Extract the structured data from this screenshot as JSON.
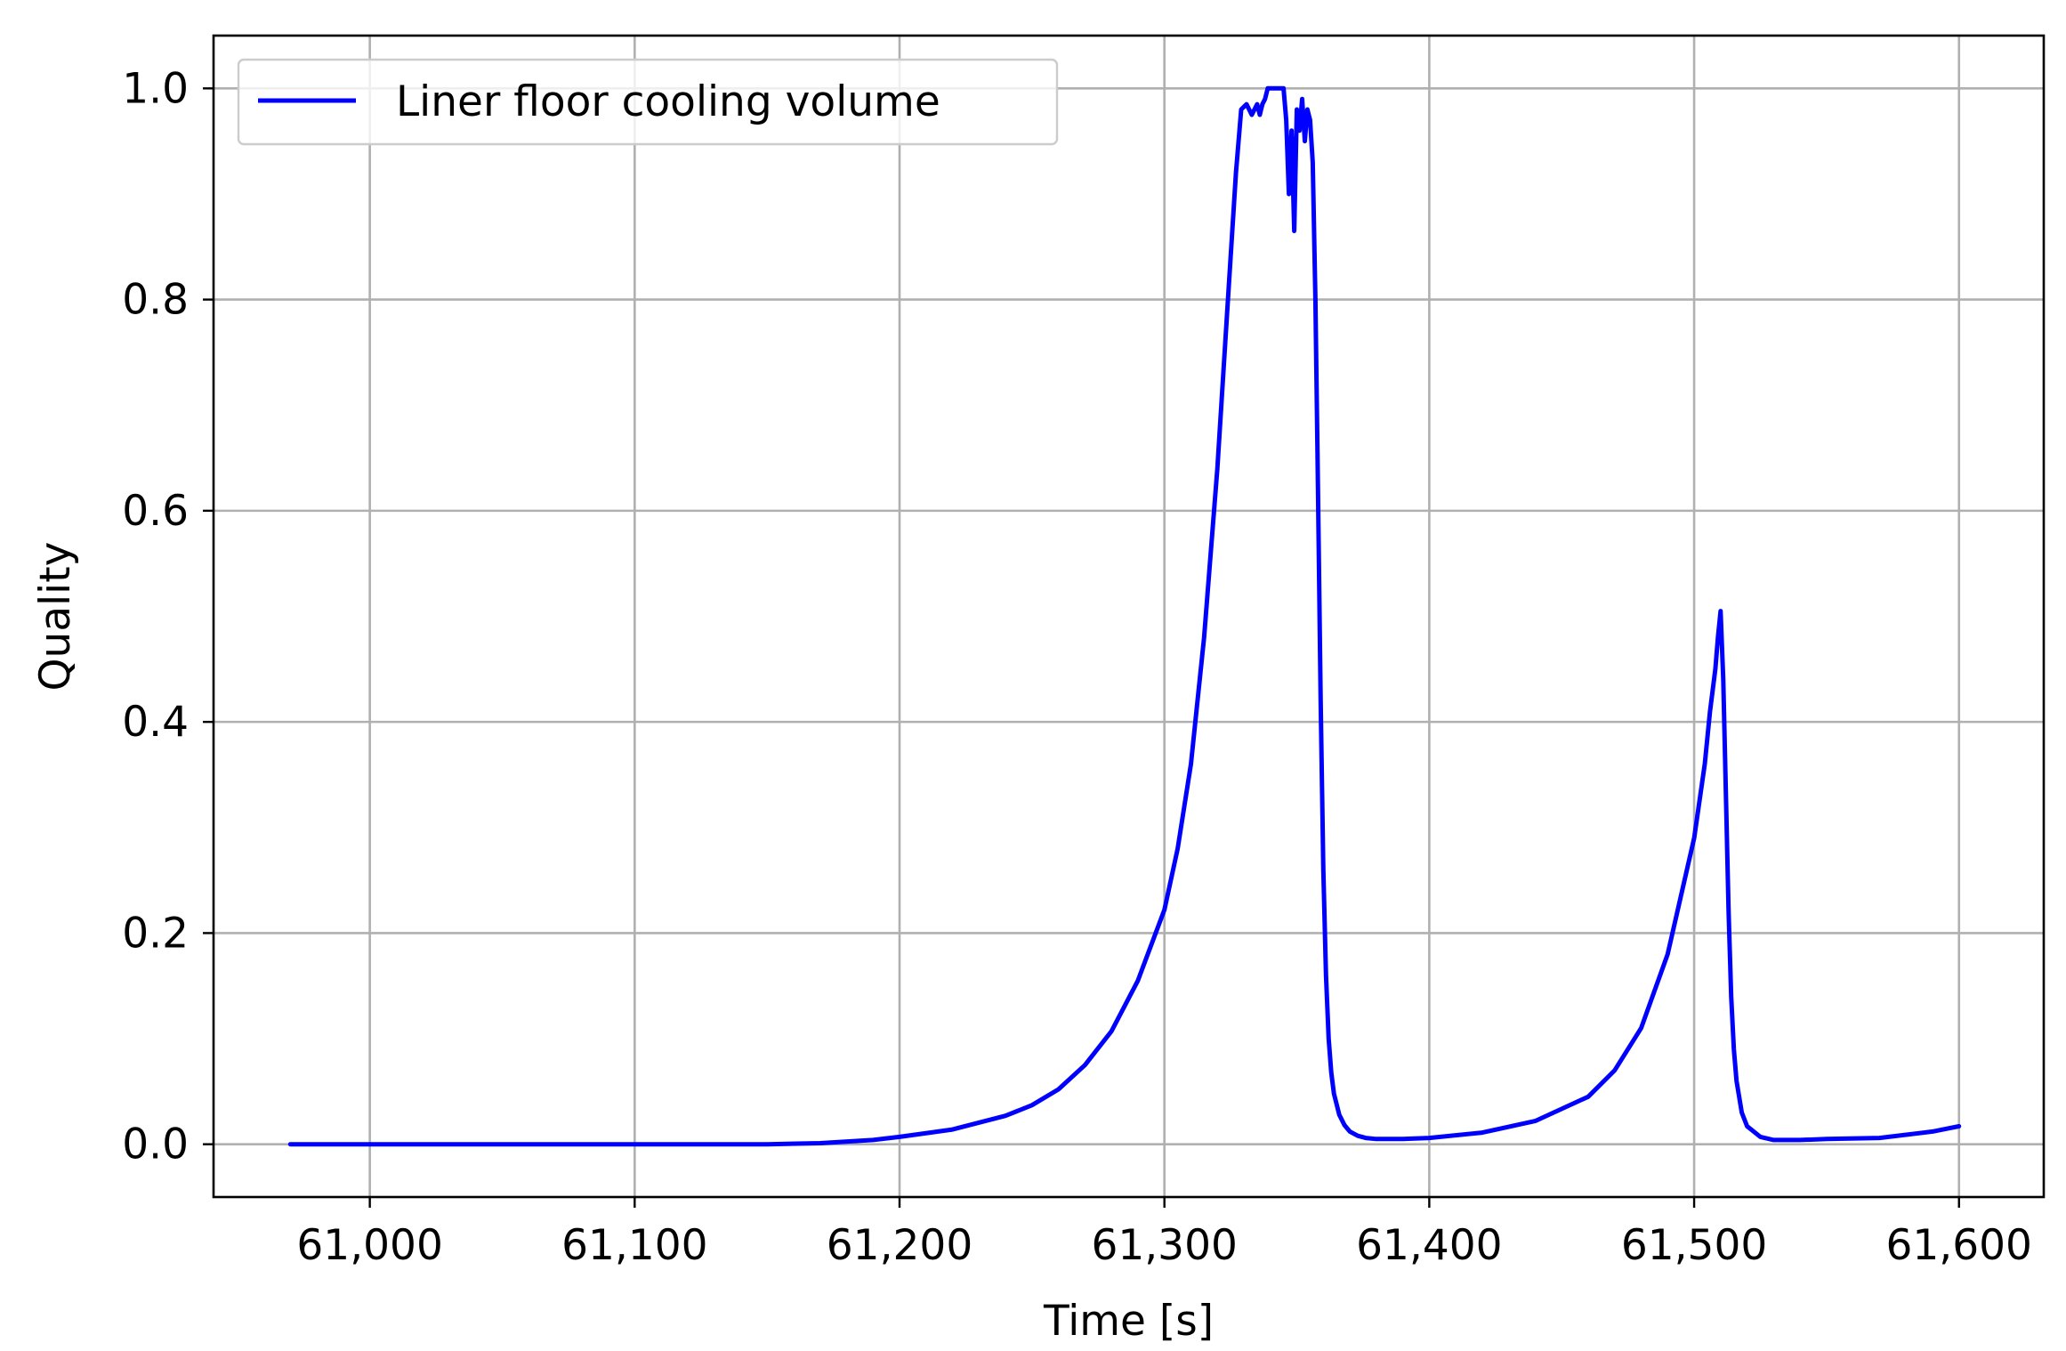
{
  "chart_data": {
    "type": "line",
    "xlabel": "Time [s]",
    "ylabel": "Quality",
    "xlim": [
      60941,
      61632
    ],
    "ylim": [
      -0.05,
      1.05
    ],
    "xticks": [
      61000,
      61100,
      61200,
      61300,
      61400,
      61500,
      61600
    ],
    "xtick_labels": [
      "61,000",
      "61,100",
      "61,200",
      "61,300",
      "61,400",
      "61,500",
      "61,600"
    ],
    "yticks": [
      0.0,
      0.2,
      0.4,
      0.6,
      0.8,
      1.0
    ],
    "ytick_labels": [
      "0.0",
      "0.2",
      "0.4",
      "0.6",
      "0.8",
      "1.0"
    ],
    "grid": true,
    "legend_position": "top-left",
    "series": [
      {
        "name": "Liner floor cooling volume",
        "color": "#0000ff",
        "x": [
          60970,
          61000,
          61050,
          61100,
          61150,
          61170,
          61190,
          61200,
          61220,
          61240,
          61250,
          61260,
          61270,
          61280,
          61290,
          61300,
          61305,
          61310,
          61315,
          61320,
          61324,
          61327,
          61329,
          61331,
          61333,
          61335,
          61336,
          61337,
          61338,
          61339,
          61340,
          61342,
          61344,
          61345,
          61346,
          61347,
          61348,
          61349,
          61350,
          61351,
          61352,
          61353,
          61354,
          61355,
          61356,
          61357,
          61358,
          61359,
          61360,
          61361,
          61362,
          61363,
          61364,
          61366,
          61368,
          61370,
          61373,
          61376,
          61380,
          61390,
          61400,
          61420,
          61440,
          61460,
          61470,
          61480,
          61490,
          61500,
          61504,
          61506,
          61508,
          61509,
          61510,
          61511,
          61512,
          61513,
          61514,
          61515,
          61516,
          61518,
          61520,
          61525,
          61530,
          61540,
          61550,
          61570,
          61590,
          61600
        ],
        "y": [
          0.0,
          0.0,
          0.0,
          0.0,
          0.0,
          0.001,
          0.004,
          0.007,
          0.014,
          0.027,
          0.037,
          0.052,
          0.075,
          0.107,
          0.155,
          0.222,
          0.28,
          0.36,
          0.48,
          0.64,
          0.8,
          0.92,
          0.98,
          0.985,
          0.975,
          0.985,
          0.975,
          0.985,
          0.99,
          1.0,
          1.0,
          1.0,
          1.0,
          1.0,
          0.97,
          0.9,
          0.96,
          0.865,
          0.98,
          0.96,
          0.99,
          0.95,
          0.98,
          0.97,
          0.93,
          0.8,
          0.62,
          0.42,
          0.26,
          0.16,
          0.1,
          0.068,
          0.048,
          0.028,
          0.018,
          0.012,
          0.008,
          0.006,
          0.005,
          0.005,
          0.006,
          0.011,
          0.022,
          0.045,
          0.07,
          0.11,
          0.18,
          0.29,
          0.36,
          0.41,
          0.45,
          0.48,
          0.505,
          0.44,
          0.33,
          0.22,
          0.14,
          0.09,
          0.06,
          0.03,
          0.017,
          0.007,
          0.004,
          0.004,
          0.005,
          0.006,
          0.012,
          0.017
        ]
      }
    ]
  }
}
